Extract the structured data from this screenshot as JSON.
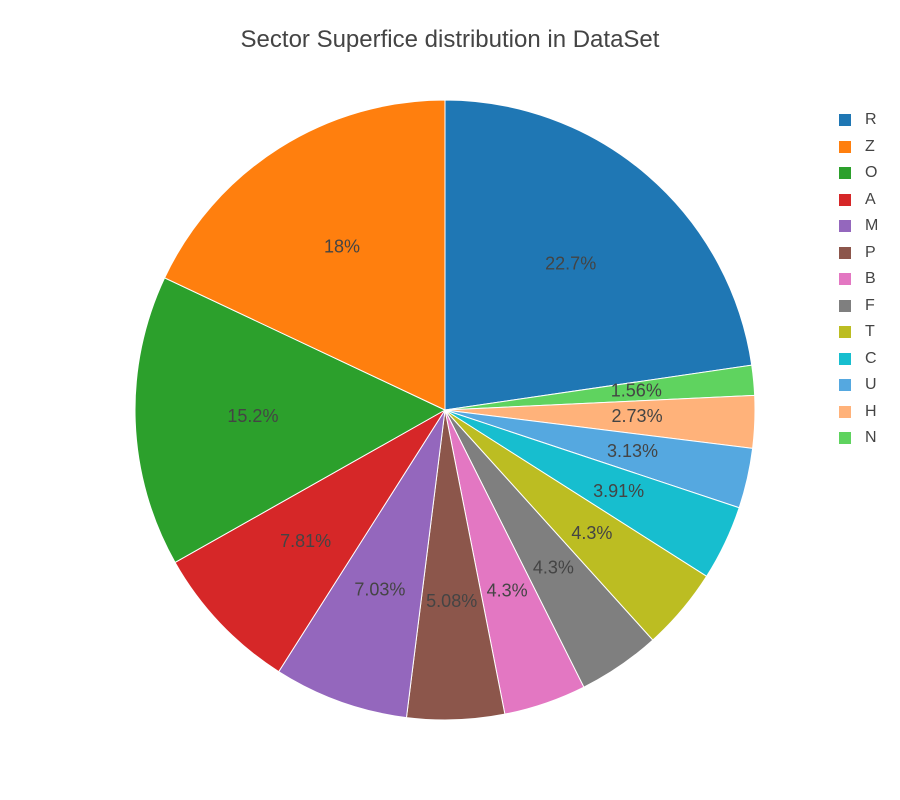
{
  "chart_data": {
    "type": "pie",
    "title": "Sector Superfice distribution in DataSet",
    "slices": [
      {
        "label": "R",
        "value": 22.7,
        "display": "22.7%",
        "color": "#1f77b4"
      },
      {
        "label": "N",
        "value": 1.56,
        "display": "1.56%",
        "color": "#5fd35f"
      },
      {
        "label": "H",
        "value": 2.73,
        "display": "2.73%",
        "color": "#ffb27a"
      },
      {
        "label": "U",
        "value": 3.13,
        "display": "3.13%",
        "color": "#55a8e0"
      },
      {
        "label": "C",
        "value": 3.91,
        "display": "3.91%",
        "color": "#17becf"
      },
      {
        "label": "T",
        "value": 4.3,
        "display": "4.3%",
        "color": "#bcbd22"
      },
      {
        "label": "F",
        "value": 4.3,
        "display": "4.3%",
        "color": "#7f7f7f"
      },
      {
        "label": "B",
        "value": 4.3,
        "display": "4.3%",
        "color": "#e377c2"
      },
      {
        "label": "P",
        "value": 5.08,
        "display": "5.08%",
        "color": "#8c564b"
      },
      {
        "label": "M",
        "value": 7.03,
        "display": "7.03%",
        "color": "#9467bd"
      },
      {
        "label": "A",
        "value": 7.81,
        "display": "7.81%",
        "color": "#d62728"
      },
      {
        "label": "O",
        "value": 15.2,
        "display": "15.2%",
        "color": "#2ca02c"
      },
      {
        "label": "Z",
        "value": 18,
        "display": "18%",
        "color": "#ff7f0e"
      }
    ],
    "legend": {
      "placement": "top-right",
      "entries": [
        {
          "label": "R",
          "color": "#1f77b4"
        },
        {
          "label": "Z",
          "color": "#ff7f0e"
        },
        {
          "label": "O",
          "color": "#2ca02c"
        },
        {
          "label": "A",
          "color": "#d62728"
        },
        {
          "label": "M",
          "color": "#9467bd"
        },
        {
          "label": "P",
          "color": "#8c564b"
        },
        {
          "label": "B",
          "color": "#e377c2"
        },
        {
          "label": "F",
          "color": "#7f7f7f"
        },
        {
          "label": "T",
          "color": "#bcbd22"
        },
        {
          "label": "C",
          "color": "#17becf"
        },
        {
          "label": "U",
          "color": "#55a8e0"
        },
        {
          "label": "H",
          "color": "#ffb27a"
        },
        {
          "label": "N",
          "color": "#5fd35f"
        }
      ]
    }
  }
}
